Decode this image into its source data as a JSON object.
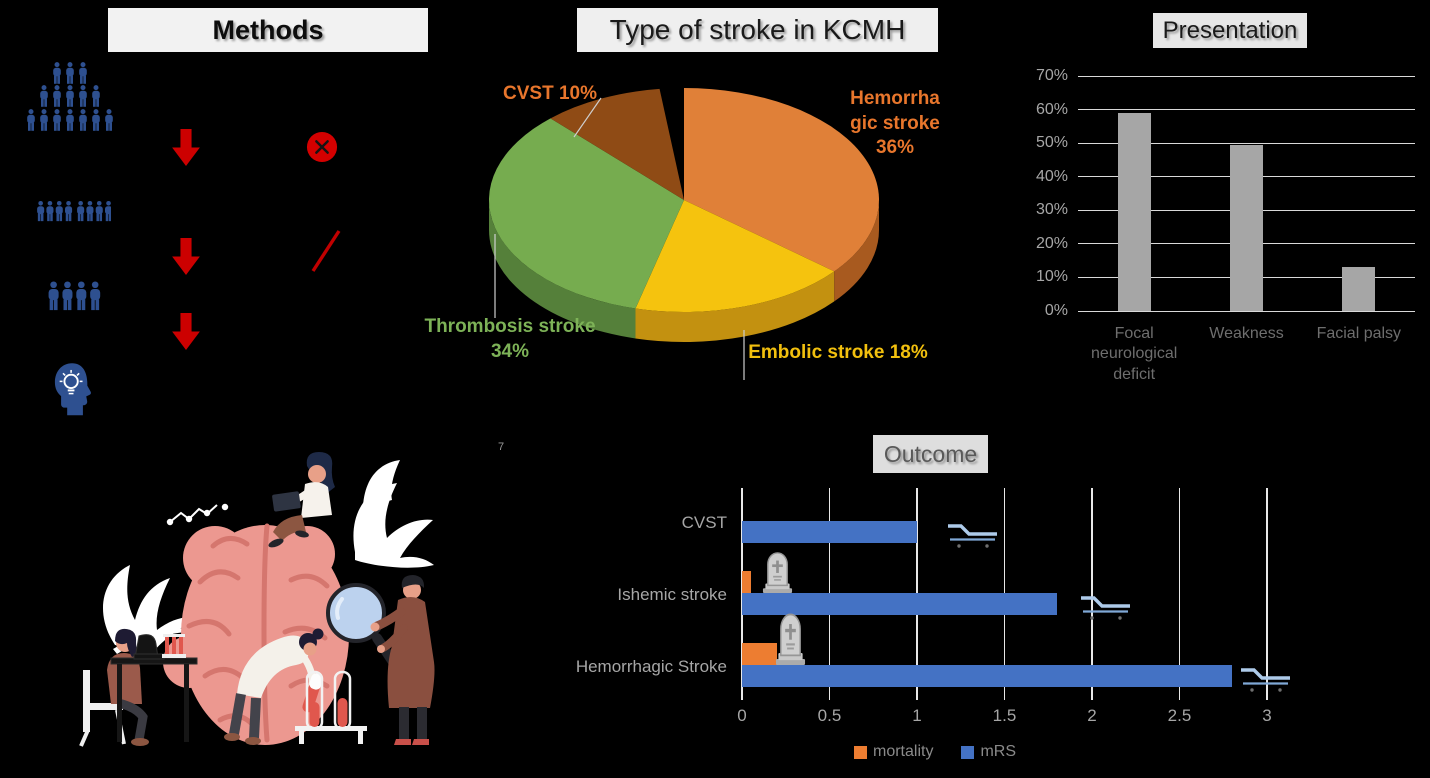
{
  "misc": {
    "stray_mark": "7"
  },
  "methods": {
    "title": "Methods",
    "icons": [
      "population-crowd-icon",
      "red-down-arrow-icon",
      "exclude-circle-x-icon",
      "cohort-row-icon",
      "red-down-arrow-icon",
      "exclude-slash-icon",
      "final-sample-icon",
      "red-down-arrow-icon",
      "insight-head-lightbulb-icon"
    ],
    "icon_color": "#2E5090",
    "arrow_color": "#CC0000"
  },
  "illustration": {
    "name": "research-team-examining-brain-illustration"
  },
  "chart_data": [
    {
      "type": "pie",
      "effect": "3d",
      "title": "Type of stroke in KCMH",
      "start_angle_deg": -90,
      "clockwise": true,
      "slices": [
        {
          "label": "Hemorrhagic stroke",
          "value": 36,
          "color": "#E08038",
          "side_color": "#A85A1F",
          "label_color": "#E8762C",
          "callout_lines": [
            "Hemorrha",
            "gic stroke",
            "36%"
          ]
        },
        {
          "label": "Embolic stroke",
          "value": 18,
          "color": "#F5C30E",
          "side_color": "#C39110",
          "label_color": "#F2C00E",
          "callout_lines": [
            "Embolic stroke 18%"
          ]
        },
        {
          "label": "Thrombosis stroke",
          "value": 34,
          "color": "#76AC4F",
          "side_color": "#55803A",
          "label_color": "#7DB257",
          "callout_lines": [
            "Thrombosis stroke",
            "34%"
          ]
        },
        {
          "label": "CVST",
          "value": 10,
          "color": "#8F4B15",
          "side_color": "#6E3A10",
          "label_color": "#E8762C",
          "callout_lines": [
            "CVST 10%"
          ]
        }
      ]
    },
    {
      "type": "bar",
      "title": "Presentation",
      "categories": [
        "Focal neurological deficit",
        "Weakness",
        "Facial palsy"
      ],
      "values": [
        59,
        49.5,
        13
      ],
      "ylim": [
        0,
        70
      ],
      "yticks": [
        "0%",
        "10%",
        "20%",
        "30%",
        "40%",
        "50%",
        "60%",
        "70%"
      ],
      "bar_color": "#A6A6A6",
      "grid": true,
      "legend_position": "none"
    },
    {
      "type": "bar",
      "orientation": "horizontal",
      "title": "Outcome",
      "categories": [
        "CVST",
        "Ishemic stroke",
        "Hemorrhagic Stroke"
      ],
      "series": [
        {
          "name": "mortality",
          "color": "#ED7D31",
          "values": [
            0,
            0.05,
            0.2
          ]
        },
        {
          "name": "mRS",
          "color": "#4472C4",
          "values": [
            1,
            1.8,
            2.8
          ]
        }
      ],
      "xlim": [
        0,
        3.5
      ],
      "xticks": [
        0,
        0.5,
        1,
        1.5,
        2,
        2.5,
        3
      ],
      "xtick_labels": [
        "0",
        "0.5",
        "1",
        "1.5",
        "2",
        "2.5",
        "3"
      ],
      "grid": true,
      "legend_position": "bottom",
      "icons": [
        "tombstone-icon",
        "hospital-bed-icon"
      ]
    }
  ]
}
